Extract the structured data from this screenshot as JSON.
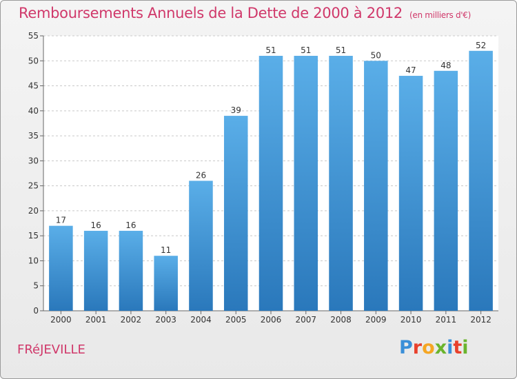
{
  "title": "Remboursements Annuels de la Dette de 2000 à 2012",
  "subtitle": "(en milliers d'€)",
  "town": "FRéJEVILLE",
  "logo": {
    "text": "Proxiti",
    "letters": [
      {
        "ch": "P",
        "color": "#3a8fd8"
      },
      {
        "ch": "r",
        "color": "#e8412c"
      },
      {
        "ch": "o",
        "color": "#f5a623"
      },
      {
        "ch": "x",
        "color": "#6ab42d"
      },
      {
        "ch": "i",
        "color": "#3a8fd8"
      },
      {
        "ch": "t",
        "color": "#e8412c"
      },
      {
        "ch": "i",
        "color": "#6ab42d"
      }
    ]
  },
  "colors": {
    "accent": "#d0386a",
    "bar_top": "#5aaee8",
    "bar_bottom": "#2a78bb",
    "grid": "#c8c8c8",
    "axis_text": "#333333"
  },
  "chart_data": {
    "type": "bar",
    "categories": [
      "2000",
      "2001",
      "2002",
      "2003",
      "2004",
      "2005",
      "2006",
      "2007",
      "2008",
      "2009",
      "2010",
      "2011",
      "2012"
    ],
    "values": [
      17,
      16,
      16,
      11,
      26,
      39,
      51,
      51,
      51,
      50,
      47,
      48,
      52
    ],
    "data_labels": [
      "17",
      "16",
      "16",
      "11",
      "26",
      "39",
      "51",
      "51",
      "51",
      "50",
      "47",
      "48",
      "52"
    ],
    "ylim": [
      0,
      55
    ],
    "yticks": [
      0,
      5,
      10,
      15,
      20,
      25,
      30,
      35,
      40,
      45,
      50,
      55
    ],
    "grid": true
  }
}
